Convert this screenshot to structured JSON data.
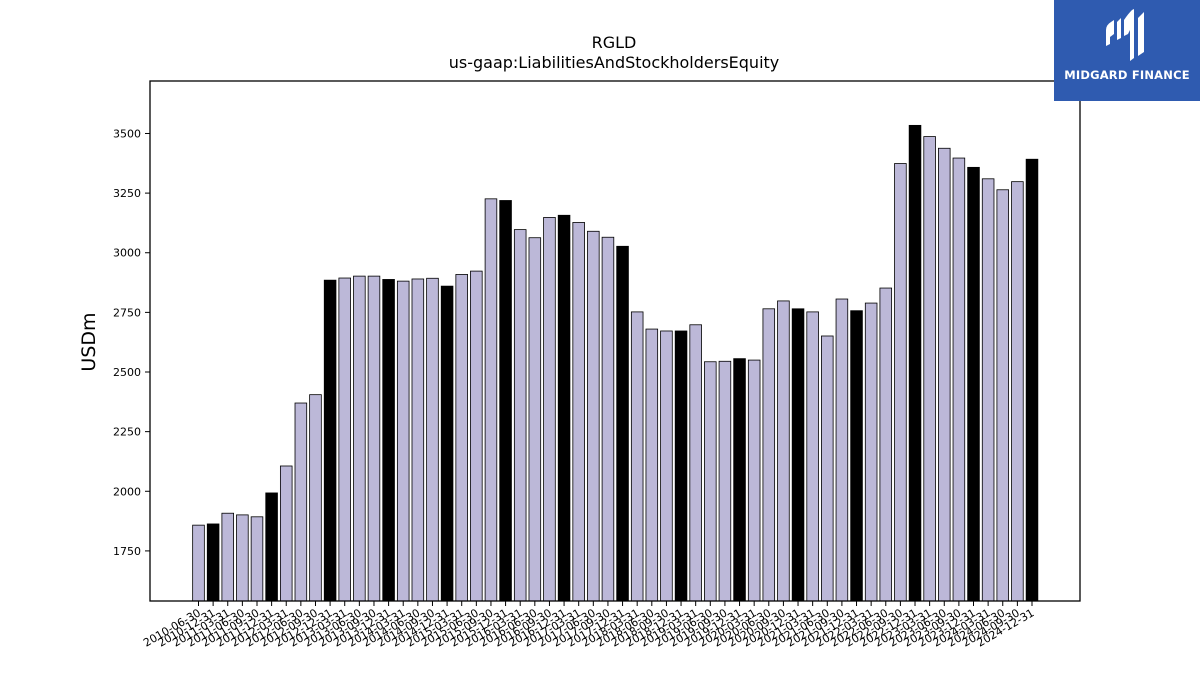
{
  "logo": {
    "text": "MIDGARD FINANCE",
    "background": "#2f5bb0"
  },
  "colors": {
    "bar_light": "#bcb8d8",
    "bar_dark": "#000000",
    "edge": "#000000"
  },
  "chart_data": {
    "type": "bar",
    "title": "RGLD",
    "subtitle": "us-gaap:LiabilitiesAndStockholdersEquity",
    "xlabel": "",
    "ylabel": "USDm",
    "ylim": [
      1540,
      3720
    ],
    "yticks": [
      1750,
      2000,
      2250,
      2500,
      2750,
      3000,
      3250,
      3500
    ],
    "grid": false,
    "categories": [
      "2010-06-30",
      "2010-12-31",
      "2011-03-31",
      "2011-06-30",
      "2011-09-30",
      "2011-12-31",
      "2012-03-31",
      "2012-06-30",
      "2012-09-30",
      "2012-12-31",
      "2013-03-31",
      "2013-06-30",
      "2013-09-30",
      "2013-12-31",
      "2014-03-31",
      "2014-06-30",
      "2014-09-30",
      "2014-12-31",
      "2015-03-31",
      "2015-06-30",
      "2015-09-30",
      "2015-12-31",
      "2016-03-31",
      "2016-06-30",
      "2016-09-30",
      "2016-12-31",
      "2017-03-31",
      "2017-06-30",
      "2017-09-30",
      "2017-12-31",
      "2018-03-31",
      "2018-06-30",
      "2018-09-30",
      "2018-12-31",
      "2019-03-31",
      "2019-06-30",
      "2019-09-30",
      "2019-12-31",
      "2020-03-31",
      "2020-06-30",
      "2020-09-30",
      "2020-12-31",
      "2021-03-31",
      "2021-06-30",
      "2021-09-30",
      "2021-12-31",
      "2022-03-31",
      "2022-06-30",
      "2022-09-30",
      "2022-12-31",
      "2023-03-31",
      "2023-06-30",
      "2023-09-30",
      "2023-12-31",
      "2024-03-31",
      "2024-06-30",
      "2024-09-30",
      "2024-12-31"
    ],
    "values": [
      1858,
      1863,
      1908,
      1901,
      1893,
      1993,
      2106,
      2370,
      2405,
      2885,
      2894,
      2902,
      2902,
      2888,
      2881,
      2890,
      2893,
      2860,
      2909,
      2923,
      3226,
      3219,
      3097,
      3063,
      3148,
      3157,
      3127,
      3090,
      3065,
      3027,
      2752,
      2680,
      2672,
      2672,
      2698,
      2543,
      2545,
      2556,
      2550,
      2765,
      2798,
      2765,
      2752,
      2651,
      2806,
      2757,
      2789,
      2852,
      3374,
      3534,
      3487,
      3438,
      3397,
      3358,
      3310,
      3264,
      3298,
      3392
    ],
    "annual_flags": [
      0,
      1,
      0,
      0,
      0,
      1,
      0,
      0,
      0,
      1,
      0,
      0,
      0,
      1,
      0,
      0,
      0,
      1,
      0,
      0,
      0,
      1,
      0,
      0,
      0,
      1,
      0,
      0,
      0,
      1,
      0,
      0,
      0,
      1,
      0,
      0,
      0,
      1,
      0,
      0,
      0,
      1,
      0,
      0,
      0,
      1,
      0,
      0,
      0,
      1,
      0,
      0,
      0,
      1,
      0,
      0,
      0,
      1
    ]
  }
}
